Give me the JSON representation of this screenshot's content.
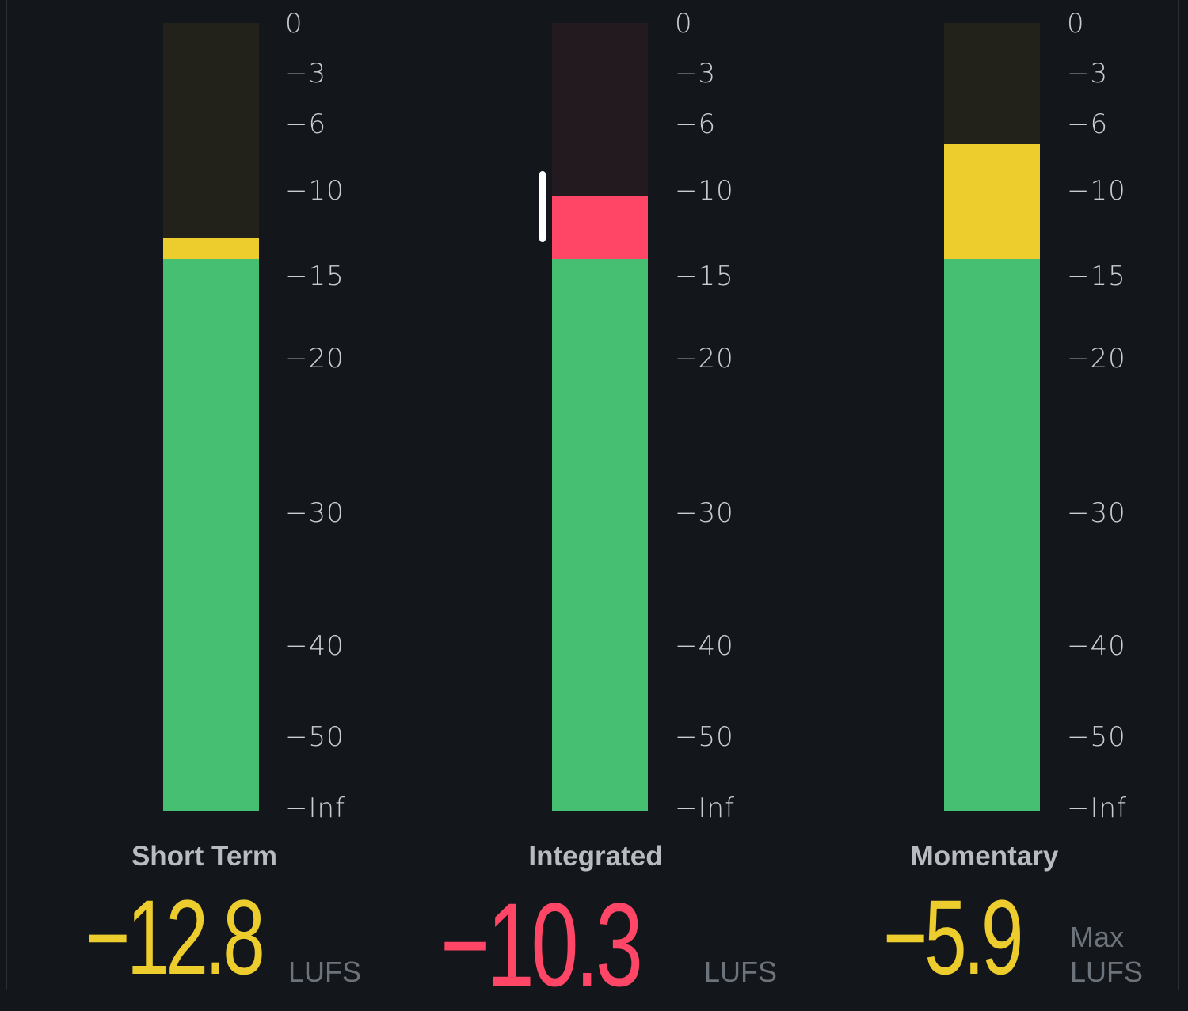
{
  "scale": {
    "ticks": [
      "0",
      "−3",
      "−6",
      "−10",
      "−15",
      "−20",
      "−30",
      "−40",
      "−50",
      "−Inf"
    ]
  },
  "colors": {
    "green": "#47bf72",
    "yellow": "#edcc2e",
    "red": "#ff4666",
    "background": "#13161b",
    "empty_yellow": "#22221b",
    "empty_red": "#231a1f"
  },
  "meters": [
    {
      "title": "Short Term",
      "value": "−12.8",
      "unit": "LUFS",
      "level": -12.8,
      "threshold": -14,
      "state": "yellow"
    },
    {
      "title": "Integrated",
      "value": "−10.3",
      "unit": "LUFS",
      "level": -10.3,
      "threshold": -14,
      "state": "red",
      "range": [
        -8.8,
        -13
      ]
    },
    {
      "title": "Momentary",
      "value": "−5.9",
      "unit_top": "Max",
      "unit": "LUFS",
      "level": -7.2,
      "threshold": -14,
      "state": "yellow"
    }
  ]
}
